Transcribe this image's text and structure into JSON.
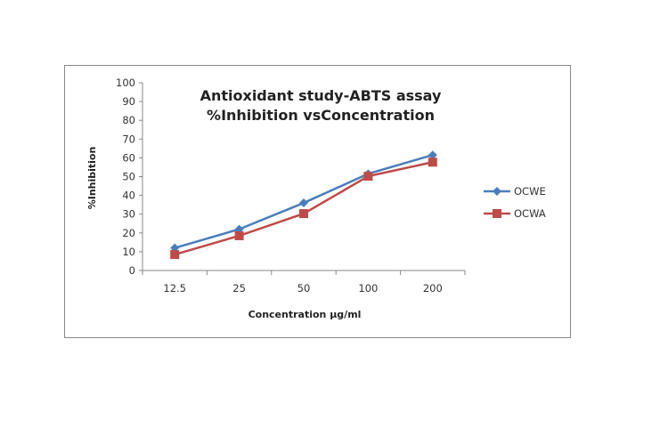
{
  "chart_data": {
    "type": "line",
    "title": [
      "Antioxidant study-ABTS assay",
      "%Inhibition vsConcentration"
    ],
    "xlabel": "Concentration µg/ml",
    "ylabel": "%Inhibition",
    "categories": [
      "12.5",
      "25",
      "50",
      "100",
      "200"
    ],
    "ylim": [
      0,
      100
    ],
    "yticks": [
      "0",
      "10",
      "20",
      "30",
      "40",
      "50",
      "60",
      "70",
      "80",
      "90",
      "100"
    ],
    "grid": false,
    "legend_position": "right",
    "series": [
      {
        "name": "OCWE",
        "color": "#4a7ebb",
        "marker": "diamond",
        "values": [
          12,
          22,
          36,
          51.5,
          61.5
        ]
      },
      {
        "name": "OCWA",
        "color": "#be4b48",
        "marker": "square",
        "values": [
          8.5,
          18.5,
          30.3,
          50.2,
          57.7
        ]
      }
    ]
  }
}
